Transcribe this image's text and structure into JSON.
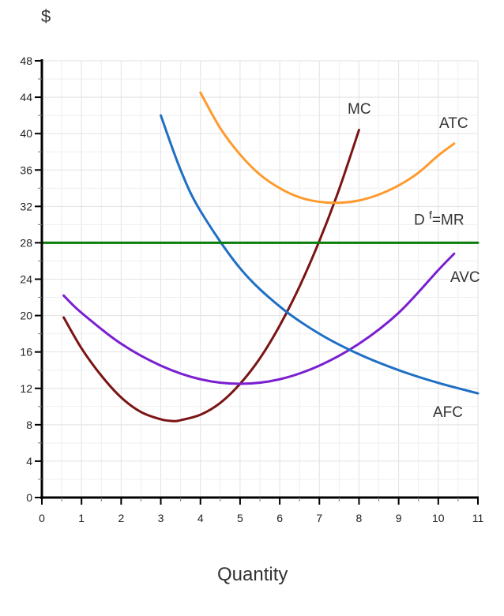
{
  "chart_data": {
    "type": "line",
    "title": "",
    "xlabel": "Quantity",
    "ylabel": "$",
    "xlim": [
      0,
      11
    ],
    "ylim": [
      0,
      48
    ],
    "xticks": [
      0,
      1,
      2,
      3,
      4,
      5,
      6,
      7,
      8,
      9,
      10,
      11
    ],
    "yticks": [
      0,
      4,
      8,
      12,
      16,
      20,
      24,
      28,
      32,
      36,
      40,
      44,
      48
    ],
    "grid": true,
    "series": [
      {
        "name": "MC",
        "color": "#7b1414",
        "x": [
          0.55,
          1,
          1.5,
          2,
          2.5,
          3,
          3.33,
          3.5,
          4,
          4.5,
          5,
          5.5,
          6,
          6.5,
          7,
          7.5,
          8
        ],
        "y": [
          19.8,
          16.4,
          13.4,
          11.0,
          9.4,
          8.6,
          8.4,
          8.5,
          9.1,
          10.4,
          12.5,
          15.3,
          18.9,
          23.2,
          28.2,
          33.9,
          40.4
        ]
      },
      {
        "name": "ATC",
        "color": "#ff9a2e",
        "x": [
          4,
          4.5,
          5,
          5.5,
          6,
          6.5,
          7,
          7.5,
          8,
          8.5,
          9,
          9.5,
          10,
          10.4
        ],
        "y": [
          44.5,
          40.6,
          37.7,
          35.5,
          34.0,
          33.0,
          32.5,
          32.4,
          32.65,
          33.3,
          34.3,
          35.7,
          37.6,
          38.9
        ]
      },
      {
        "name": "AVC",
        "color": "#7a1fd1",
        "x": [
          0.55,
          1,
          2,
          3,
          4,
          5,
          6,
          7,
          8,
          9,
          10,
          10.4
        ],
        "y": [
          22.2,
          20.3,
          16.9,
          14.5,
          13.0,
          12.5,
          13.0,
          14.5,
          16.9,
          20.3,
          25.0,
          26.8
        ]
      },
      {
        "name": "AFC",
        "color": "#1f6fc5",
        "x": [
          3,
          3.5,
          4,
          5,
          6,
          7,
          8,
          9,
          10,
          11
        ],
        "y": [
          42,
          36,
          31.5,
          25.2,
          21,
          18,
          15.75,
          14,
          12.6,
          11.45
        ]
      },
      {
        "name": "D f =MR",
        "color": "#0a7d0a",
        "x": [
          0,
          11
        ],
        "y": [
          28,
          28
        ]
      }
    ],
    "labels": {
      "mc": "MC",
      "atc": "ATC",
      "df_main": "D",
      "df_sup": "f",
      "df_rest": "=MR",
      "avc": "AVC",
      "afc": "AFC"
    }
  }
}
